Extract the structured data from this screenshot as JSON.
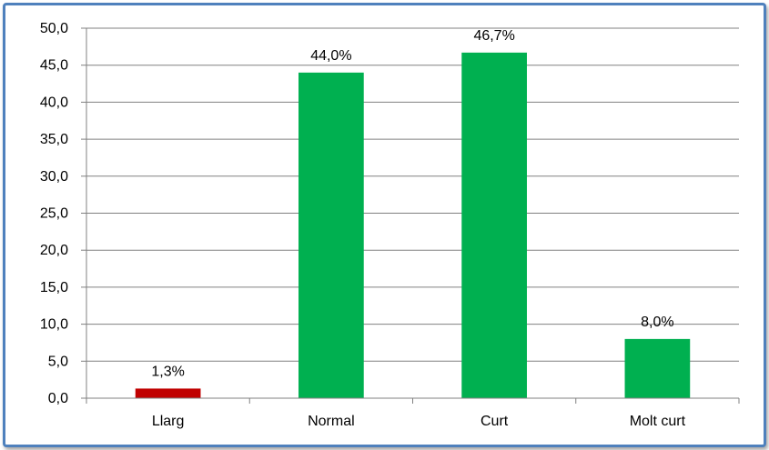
{
  "chart_data": {
    "type": "bar",
    "categories": [
      "Llarg",
      "Normal",
      "Curt",
      "Molt curt"
    ],
    "values": [
      1.3,
      44.0,
      46.7,
      8.0
    ],
    "data_labels": [
      "1,3%",
      "44,0%",
      "46,7%",
      "8,0%"
    ],
    "bar_colors": [
      "#c00000",
      "#00b050",
      "#00b050",
      "#00b050"
    ],
    "yticks": [
      "0,0",
      "5,0",
      "10,0",
      "15,0",
      "20,0",
      "25,0",
      "30,0",
      "35,0",
      "40,0",
      "45,0",
      "50,0"
    ],
    "ylim": [
      0,
      50
    ],
    "ytick_step": 5,
    "grid": true,
    "legend": "none",
    "title": "",
    "xlabel": "",
    "ylabel": "",
    "frame_color": "#4f81bd"
  }
}
